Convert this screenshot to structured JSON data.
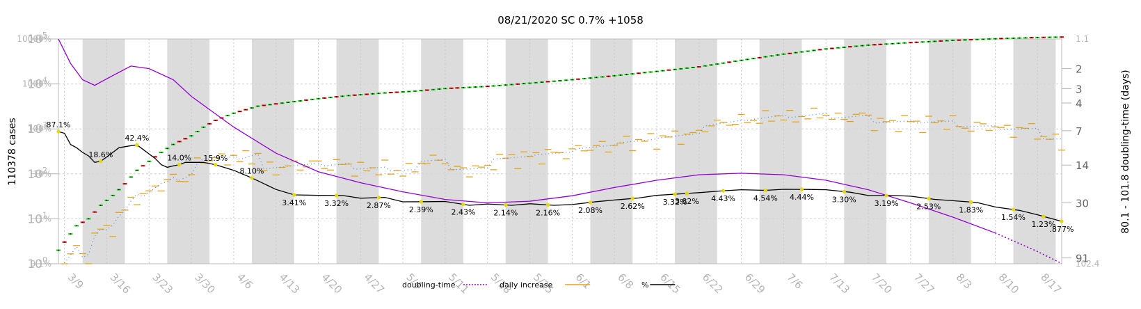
{
  "chart_data": {
    "type": "line",
    "title": "08/21/2020 SC 0.7% +1058",
    "ylabel_left": "110378 cases",
    "ylabel_right": "80.1 - 101.8 doubling-time (days)",
    "ylim": [
      1,
      100000
    ],
    "y_scale": "log",
    "pct_ylim": [
      0.1,
      10000
    ],
    "dt_ylim": [
      1.1,
      102.4
    ],
    "grid": true,
    "legend_placement": "bottom",
    "y_tick_labels": [
      "10^0",
      "10^1",
      "10^2",
      "10^3",
      "10^4",
      "10^5"
    ],
    "pct_tick_labels": [
      "0.1%",
      "1%",
      "10%",
      "100%",
      "1000%",
      "10000%"
    ],
    "dt_tick_labels": [
      "1.1",
      "2",
      "3",
      "4",
      "7",
      "14",
      "30",
      "91",
      "102.4"
    ],
    "dt_tick_values": [
      1.1,
      2,
      3,
      4,
      7,
      14,
      30,
      91,
      102.4
    ],
    "x_tick_labels": [
      "3/9",
      "3/16",
      "3/23",
      "3/30",
      "4/6",
      "4/13",
      "4/20",
      "4/27",
      "5/4",
      "5/11",
      "5/18",
      "5/25",
      "6/1",
      "6/8",
      "6/15",
      "6/22",
      "6/29",
      "7/6",
      "7/13",
      "7/20",
      "7/27",
      "8/3",
      "8/10",
      "8/17"
    ],
    "x_range": [
      "3/8",
      "8/21"
    ],
    "legend": [
      {
        "label": "doubling-time",
        "color": "#9400d3",
        "style": "dotted"
      },
      {
        "label": "daily increase",
        "color": "#e8a317",
        "style": "solid"
      },
      {
        "label": "%",
        "color": "#000000",
        "style": "solid"
      }
    ],
    "colors": {
      "cases_up": "#00cc00",
      "cases_down": "#dd0000",
      "percent": "#000000",
      "doubling": "#9400d3",
      "daily_increase": "#e8a317",
      "daily_avg": "#4a90d9",
      "marker": "#e6d800",
      "shade": "#dcdcdc"
    },
    "series": [
      {
        "name": "cases",
        "x": [
          "3/8",
          "3/11",
          "3/13",
          "3/15",
          "3/17",
          "3/19",
          "3/21",
          "3/23",
          "3/25",
          "3/27",
          "3/30",
          "4/1",
          "4/3",
          "4/6",
          "4/10",
          "4/13",
          "4/17",
          "4/20",
          "4/25",
          "5/1",
          "5/6",
          "5/11",
          "5/18",
          "5/25",
          "6/1",
          "6/8",
          "6/15",
          "6/22",
          "6/29",
          "7/6",
          "7/13",
          "7/20",
          "7/27",
          "8/3",
          "8/10",
          "8/17",
          "8/21"
        ],
        "values": [
          2,
          7,
          10,
          20,
          33,
          60,
          120,
          190,
          300,
          450,
          700,
          1090,
          1550,
          2230,
          3200,
          3600,
          4200,
          4700,
          5500,
          6300,
          6900,
          7900,
          8800,
          10400,
          12400,
          15200,
          19000,
          24000,
          33500,
          46000,
          60000,
          73000,
          83000,
          93000,
          101000,
          108000,
          110378
        ]
      },
      {
        "name": "%",
        "x": [
          "3/8",
          "3/9",
          "3/10",
          "3/11",
          "3/12",
          "3/13",
          "3/14",
          "3/15",
          "3/17",
          "3/18",
          "3/20",
          "3/21",
          "3/22",
          "3/24",
          "3/25",
          "3/26",
          "3/27",
          "3/28",
          "3/29",
          "4/1",
          "4/3",
          "4/6",
          "4/9",
          "4/13",
          "4/16",
          "4/20",
          "4/24",
          "4/27",
          "5/1",
          "5/4",
          "5/8",
          "5/11",
          "5/15",
          "5/18",
          "5/22",
          "5/25",
          "5/29",
          "6/1",
          "6/5",
          "6/8",
          "6/12",
          "6/15",
          "6/19",
          "6/22",
          "6/26",
          "6/29",
          "7/3",
          "7/6",
          "7/10",
          "7/13",
          "7/17",
          "7/20",
          "7/24",
          "7/27",
          "7/31",
          "8/3",
          "8/7",
          "8/10",
          "8/14",
          "8/17",
          "8/21"
        ],
        "values": [
          87.1,
          80,
          45,
          38,
          30,
          25,
          18,
          19,
          30,
          38,
          42.4,
          44,
          35,
          22,
          16,
          14,
          15,
          16,
          18,
          18,
          15.9,
          12,
          8.1,
          4.5,
          3.41,
          3.32,
          3.3,
          2.87,
          3.0,
          2.39,
          2.4,
          2.43,
          2.0,
          2.14,
          2.0,
          2.16,
          2.0,
          2.08,
          2.4,
          2.62,
          2.9,
          3.32,
          3.6,
          3.82,
          4.2,
          4.43,
          4.3,
          4.54,
          4.5,
          4.44,
          3.9,
          3.3,
          3.3,
          3.19,
          2.7,
          2.53,
          2.3,
          1.83,
          1.54,
          1.23,
          0.877
        ]
      },
      {
        "name": "doubling-time",
        "x": [
          "3/8",
          "3/10",
          "3/12",
          "3/14",
          "3/17",
          "3/20",
          "3/23",
          "3/27",
          "3/30",
          "4/6",
          "4/13",
          "4/20",
          "4/27",
          "5/4",
          "5/11",
          "5/18",
          "5/25",
          "6/1",
          "6/8",
          "6/15",
          "6/22",
          "6/29",
          "7/6",
          "7/13",
          "7/20",
          "7/27",
          "8/3",
          "8/10",
          "8/17",
          "8/21"
        ],
        "values": [
          1.1,
          1.8,
          2.5,
          2.8,
          2.3,
          1.9,
          2.0,
          2.5,
          3.5,
          6.5,
          11,
          16,
          20,
          24,
          28,
          30,
          29,
          26,
          22,
          19,
          17,
          16.5,
          17,
          19,
          23,
          30,
          40,
          55,
          80,
          101.8
        ]
      }
    ],
    "annotations": [
      {
        "x": "3/8",
        "label": "87.1%"
      },
      {
        "x": "3/15",
        "label": "18.6%"
      },
      {
        "x": "3/21",
        "label": "42.4%"
      },
      {
        "x": "3/28",
        "label": "14.0%"
      },
      {
        "x": "4/3",
        "label": "15.9%"
      },
      {
        "x": "4/9",
        "label": "8.10%"
      },
      {
        "x": "4/16",
        "label": "3.41%"
      },
      {
        "x": "4/23",
        "label": "3.32%"
      },
      {
        "x": "4/30",
        "label": "2.87%"
      },
      {
        "x": "5/7",
        "label": "2.39%"
      },
      {
        "x": "5/14",
        "label": "2.43%"
      },
      {
        "x": "5/21",
        "label": "2.14%"
      },
      {
        "x": "5/28",
        "label": "2.16%"
      },
      {
        "x": "6/4",
        "label": "2.08%"
      },
      {
        "x": "6/11",
        "label": "2.62%"
      },
      {
        "x": "6/18",
        "label": "3.32%"
      },
      {
        "x": "6/20",
        "label": "3.82%"
      },
      {
        "x": "6/26",
        "label": "4.43%"
      },
      {
        "x": "7/3",
        "label": "4.54%"
      },
      {
        "x": "7/9",
        "label": "4.44%"
      },
      {
        "x": "7/16",
        "label": "3.30%"
      },
      {
        "x": "7/23",
        "label": "3.19%"
      },
      {
        "x": "7/30",
        "label": "2.53%"
      },
      {
        "x": "8/6",
        "label": "1.83%"
      },
      {
        "x": "8/13",
        "label": "1.54%"
      },
      {
        "x": "8/18",
        "label": "1.23%"
      },
      {
        "x": "8/21",
        "label": ".877%"
      }
    ]
  }
}
